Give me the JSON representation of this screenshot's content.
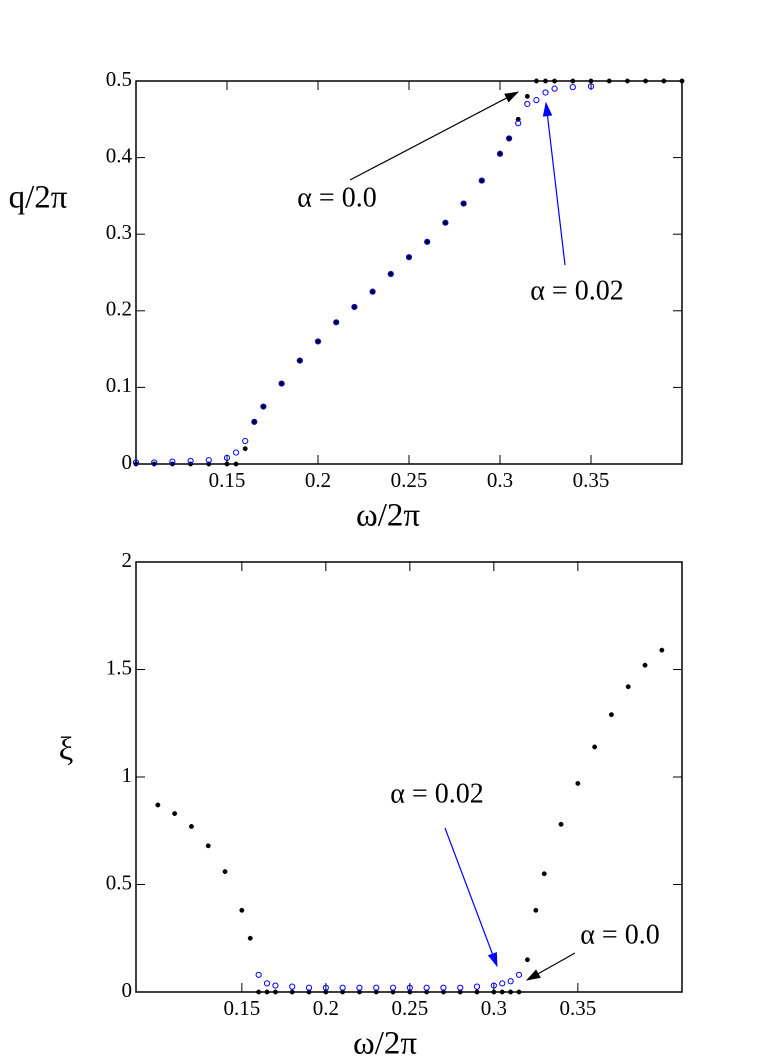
{
  "chart_data": [
    {
      "type": "scatter",
      "x_label": "ω/2π",
      "y_label": "q/2π",
      "xlim": [
        0.1,
        0.4
      ],
      "ylim": [
        0,
        0.5
      ],
      "xticks": [
        0.15,
        0.2,
        0.25,
        0.3,
        0.35
      ],
      "yticks": [
        0,
        0.1,
        0.2,
        0.3,
        0.4,
        0.5
      ],
      "x": [
        0.1,
        0.11,
        0.12,
        0.13,
        0.14,
        0.15,
        0.155,
        0.16,
        0.165,
        0.17,
        0.18,
        0.19,
        0.2,
        0.21,
        0.22,
        0.23,
        0.24,
        0.25,
        0.26,
        0.27,
        0.28,
        0.29,
        0.3,
        0.305,
        0.31,
        0.315,
        0.32,
        0.325,
        0.33,
        0.34,
        0.35,
        0.36,
        0.37,
        0.38,
        0.39,
        0.4
      ],
      "series": [
        {
          "name": "α = 0.0",
          "color": "#000000",
          "marker": "filled",
          "values": [
            0,
            0,
            0,
            0,
            0,
            0,
            0,
            0.02,
            0.055,
            0.075,
            0.105,
            0.135,
            0.16,
            0.185,
            0.205,
            0.225,
            0.248,
            0.27,
            0.29,
            0.315,
            0.34,
            0.37,
            0.405,
            0.425,
            0.45,
            0.48,
            0.5,
            0.5,
            0.5,
            0.5,
            0.5,
            0.5,
            0.5,
            0.5,
            0.5,
            0.5
          ]
        },
        {
          "name": "α = 0.02",
          "color": "#0000ff",
          "marker": "open",
          "values": [
            0.002,
            0.002,
            0.003,
            0.004,
            0.005,
            0.008,
            0.015,
            0.03,
            0.055,
            0.075,
            0.105,
            0.135,
            0.16,
            0.185,
            0.205,
            0.225,
            0.248,
            0.27,
            0.29,
            0.315,
            0.34,
            0.37,
            0.405,
            0.425,
            0.445,
            0.47,
            0.475,
            0.485,
            0.49,
            0.492,
            0.493,
            null,
            null,
            null,
            null,
            null
          ]
        }
      ]
    },
    {
      "type": "scatter",
      "x_label": "ω/2π",
      "y_label": "ξ",
      "xlim": [
        0.087,
        0.412
      ],
      "ylim": [
        0,
        2
      ],
      "xticks": [
        0.15,
        0.2,
        0.25,
        0.3,
        0.35
      ],
      "yticks": [
        0,
        0.5,
        1,
        1.5,
        2
      ],
      "x": [
        0.1,
        0.11,
        0.12,
        0.13,
        0.14,
        0.15,
        0.155,
        0.16,
        0.165,
        0.17,
        0.18,
        0.19,
        0.2,
        0.21,
        0.22,
        0.23,
        0.24,
        0.25,
        0.26,
        0.27,
        0.28,
        0.29,
        0.3,
        0.305,
        0.31,
        0.315,
        0.32,
        0.325,
        0.33,
        0.34,
        0.35,
        0.36,
        0.37,
        0.38,
        0.39,
        0.4
      ],
      "series": [
        {
          "name": "α = 0.0",
          "color": "#000000",
          "marker": "filled",
          "values": [
            0.87,
            0.83,
            0.77,
            0.68,
            0.56,
            0.38,
            0.25,
            0,
            0,
            0,
            0,
            0,
            0,
            0,
            0,
            0,
            0,
            0,
            0,
            0,
            0,
            0,
            0,
            0,
            0,
            0,
            0.15,
            0.38,
            0.55,
            0.78,
            0.97,
            1.14,
            1.29,
            1.42,
            1.52,
            1.59
          ]
        },
        {
          "name": "α = 0.02",
          "color": "#0000ff",
          "marker": "open",
          "values": [
            null,
            null,
            null,
            null,
            null,
            null,
            null,
            0.08,
            0.04,
            0.03,
            0.025,
            0.02,
            0.02,
            0.02,
            0.02,
            0.02,
            0.02,
            0.02,
            0.02,
            0.02,
            0.02,
            0.025,
            0.03,
            0.04,
            0.05,
            0.08,
            null,
            null,
            null,
            null,
            null,
            null,
            null,
            null,
            null,
            null
          ]
        }
      ]
    }
  ]
}
